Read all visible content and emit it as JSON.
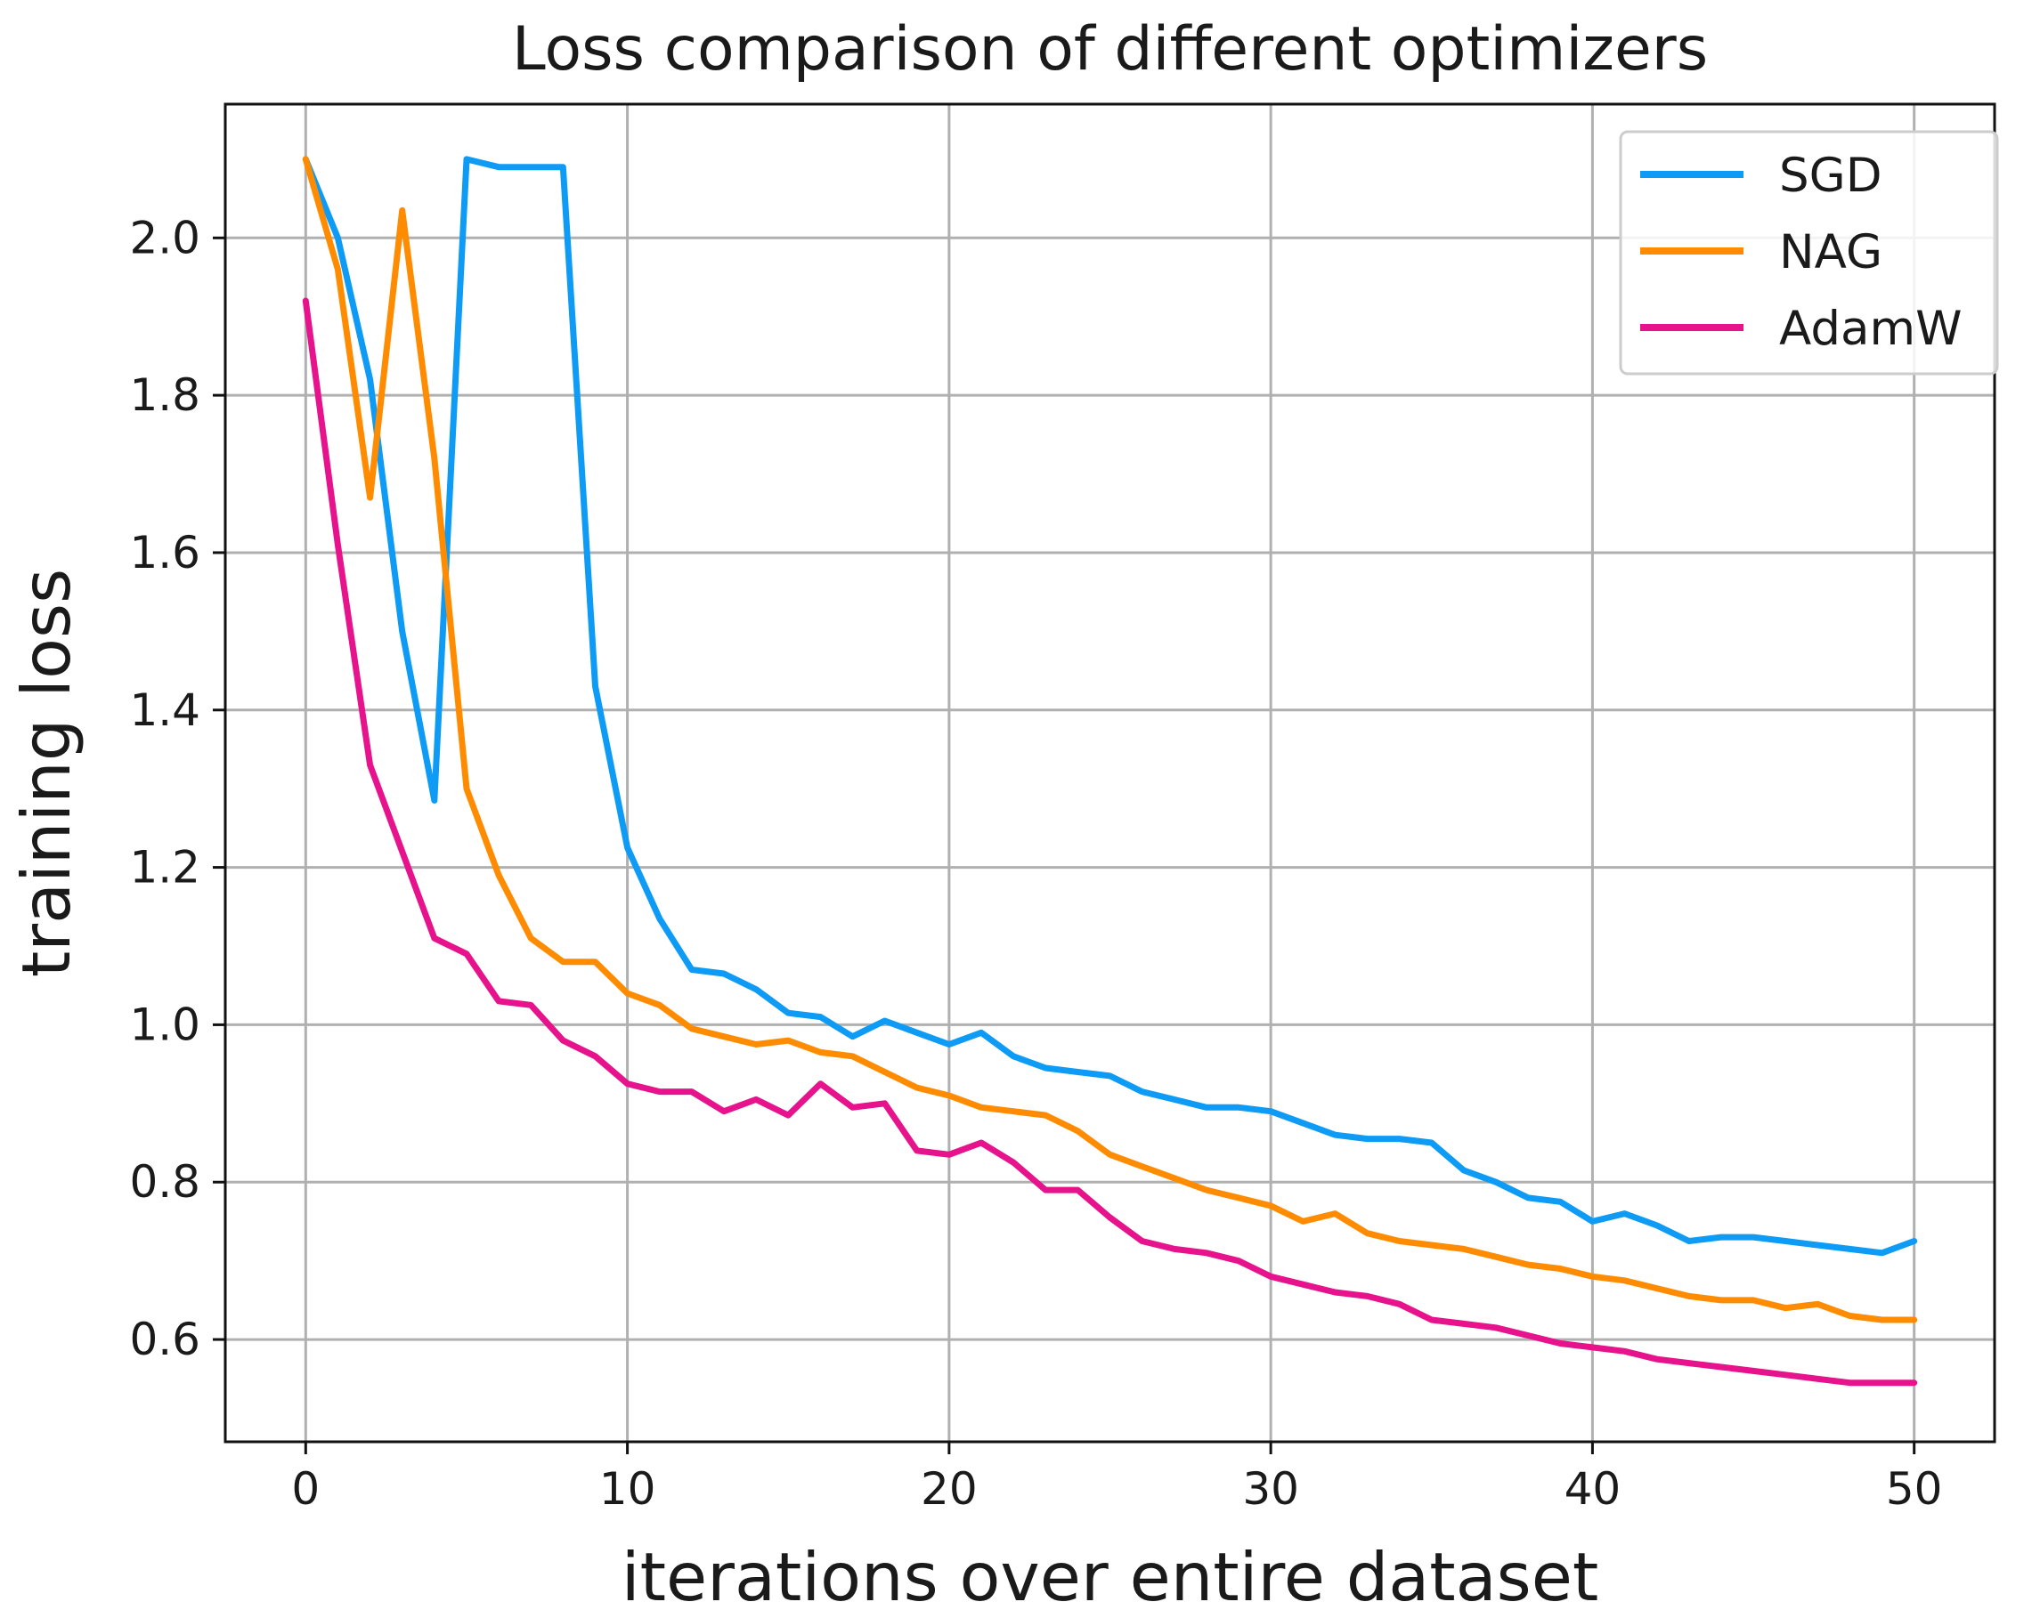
{
  "chart_data": {
    "type": "line",
    "title": "Loss comparison of different optimizers",
    "xlabel": "iterations over entire dataset",
    "ylabel": "training loss",
    "xlim": [
      -2.5,
      52.5
    ],
    "ylim": [
      0.47,
      2.17
    ],
    "xticks": [
      0,
      10,
      20,
      30,
      40,
      50
    ],
    "xtick_labels": [
      "0",
      "10",
      "20",
      "30",
      "40",
      "50"
    ],
    "yticks": [
      0.6,
      0.8,
      1.0,
      1.2,
      1.4,
      1.6,
      1.8,
      2.0
    ],
    "ytick_labels": [
      "0.6",
      "0.8",
      "1.0",
      "1.2",
      "1.4",
      "1.6",
      "1.8",
      "2.0"
    ],
    "grid": true,
    "legend_position": "top-right",
    "x": [
      0,
      1,
      2,
      3,
      4,
      5,
      6,
      7,
      8,
      9,
      10,
      11,
      12,
      13,
      14,
      15,
      16,
      17,
      18,
      19,
      20,
      21,
      22,
      23,
      24,
      25,
      26,
      27,
      28,
      29,
      30,
      31,
      32,
      33,
      34,
      35,
      36,
      37,
      38,
      39,
      40,
      41,
      42,
      43,
      44,
      45,
      46,
      47,
      48,
      49,
      50
    ],
    "series": [
      {
        "name": "SGD",
        "color": "#0d9bf5",
        "values": [
          2.1,
          2.0,
          1.82,
          1.5,
          1.285,
          2.1,
          2.09,
          2.09,
          2.09,
          1.43,
          1.225,
          1.135,
          1.07,
          1.065,
          1.045,
          1.015,
          1.01,
          0.985,
          1.005,
          0.99,
          0.975,
          0.99,
          0.96,
          0.945,
          0.94,
          0.935,
          0.915,
          0.905,
          0.895,
          0.895,
          0.89,
          0.875,
          0.86,
          0.855,
          0.855,
          0.85,
          0.815,
          0.8,
          0.78,
          0.775,
          0.75,
          0.76,
          0.745,
          0.725,
          0.73,
          0.73,
          0.725,
          0.72,
          0.715,
          0.71,
          0.725
        ]
      },
      {
        "name": "NAG",
        "color": "#ff8c00",
        "values": [
          2.1,
          1.96,
          1.67,
          2.035,
          1.72,
          1.3,
          1.19,
          1.11,
          1.08,
          1.08,
          1.04,
          1.025,
          0.995,
          0.985,
          0.975,
          0.98,
          0.965,
          0.96,
          0.94,
          0.92,
          0.91,
          0.895,
          0.89,
          0.885,
          0.865,
          0.835,
          0.82,
          0.805,
          0.79,
          0.78,
          0.77,
          0.75,
          0.76,
          0.735,
          0.725,
          0.72,
          0.715,
          0.705,
          0.695,
          0.69,
          0.68,
          0.675,
          0.665,
          0.655,
          0.65,
          0.65,
          0.64,
          0.645,
          0.63,
          0.625,
          0.625
        ]
      },
      {
        "name": "AdamW",
        "color": "#e6138c",
        "values": [
          1.92,
          1.61,
          1.33,
          1.22,
          1.11,
          1.09,
          1.03,
          1.025,
          0.98,
          0.96,
          0.925,
          0.915,
          0.915,
          0.89,
          0.905,
          0.885,
          0.925,
          0.895,
          0.9,
          0.84,
          0.835,
          0.85,
          0.825,
          0.79,
          0.79,
          0.755,
          0.725,
          0.715,
          0.71,
          0.7,
          0.68,
          0.67,
          0.66,
          0.655,
          0.645,
          0.625,
          0.62,
          0.615,
          0.605,
          0.595,
          0.59,
          0.585,
          0.575,
          0.57,
          0.565,
          0.56,
          0.555,
          0.55,
          0.545,
          0.545,
          0.545
        ]
      }
    ]
  }
}
